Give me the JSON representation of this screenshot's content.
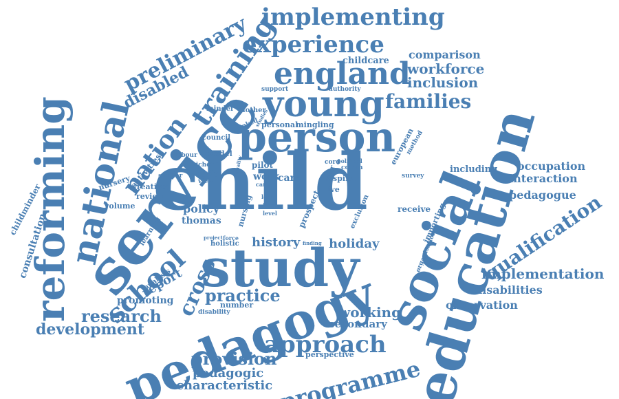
{
  "color": "#4a7fb3",
  "words": [
    {
      "key": "child",
      "text": "child"
    },
    {
      "key": "service",
      "text": "service"
    },
    {
      "key": "study",
      "text": "study"
    },
    {
      "key": "pedagogy",
      "text": "pedagogy"
    },
    {
      "key": "social",
      "text": "social"
    },
    {
      "key": "education",
      "text": "education"
    },
    {
      "key": "person",
      "text": "person"
    },
    {
      "key": "young",
      "text": "young"
    },
    {
      "key": "england",
      "text": "england"
    },
    {
      "key": "reforming",
      "text": "reforming"
    },
    {
      "key": "national",
      "text": "national"
    },
    {
      "key": "training",
      "text": "training"
    },
    {
      "key": "implementing",
      "text": "implementing"
    },
    {
      "key": "experience",
      "text": "experience"
    },
    {
      "key": "approach",
      "text": "approach"
    },
    {
      "key": "school",
      "text": "school"
    },
    {
      "key": "nation",
      "text": "nation"
    },
    {
      "key": "research",
      "text": "research"
    },
    {
      "key": "development",
      "text": "development"
    },
    {
      "key": "programme",
      "text": "programme"
    },
    {
      "key": "qualification",
      "text": "qualification"
    },
    {
      "key": "families",
      "text": "families"
    },
    {
      "key": "preliminary",
      "text": "preliminary"
    },
    {
      "key": "practice",
      "text": "practice"
    },
    {
      "key": "cross",
      "text": "cross"
    },
    {
      "key": "provision",
      "text": "provision"
    },
    {
      "key": "implementation",
      "text": "implementation"
    },
    {
      "key": "workforce",
      "text": "workforce"
    },
    {
      "key": "inclusion",
      "text": "inclusion"
    },
    {
      "key": "comparison",
      "text": "comparison"
    },
    {
      "key": "disabled",
      "text": "disabled"
    },
    {
      "key": "working",
      "text": "working"
    },
    {
      "key": "history",
      "text": "history"
    },
    {
      "key": "holiday",
      "text": "holiday"
    },
    {
      "key": "pedagogic",
      "text": "pedagogic"
    },
    {
      "key": "characteristic",
      "text": "characteristic"
    },
    {
      "key": "secondary",
      "text": "secondary"
    },
    {
      "key": "observation",
      "text": "observation"
    },
    {
      "key": "disabilities",
      "text": "disabilities"
    },
    {
      "key": "occupation",
      "text": "occupation"
    },
    {
      "key": "interaction",
      "text": "interaction"
    },
    {
      "key": "pedagogue",
      "text": "pedagogue"
    },
    {
      "key": "report",
      "text": "report"
    },
    {
      "key": "promoting",
      "text": "promoting"
    },
    {
      "key": "policy",
      "text": "policy"
    },
    {
      "key": "thomas",
      "text": "thomas"
    },
    {
      "key": "consultation",
      "text": "consultation"
    },
    {
      "key": "childminder",
      "text": "childminder"
    },
    {
      "key": "activities",
      "text": "activities"
    },
    {
      "key": "creative",
      "text": "creative"
    },
    {
      "key": "review",
      "text": "review"
    },
    {
      "key": "nursery",
      "text": "nursery"
    },
    {
      "key": "volume",
      "text": "volume"
    },
    {
      "key": "learning",
      "text": "learning"
    },
    {
      "key": "analysis",
      "text": "analysis"
    },
    {
      "key": "number",
      "text": "number"
    },
    {
      "key": "disability",
      "text": "disability"
    },
    {
      "key": "perspective",
      "text": "perspective"
    },
    {
      "key": "receive",
      "text": "receive"
    },
    {
      "key": "including",
      "text": "including"
    },
    {
      "key": "importing",
      "text": "importing"
    },
    {
      "key": "organisation",
      "text": "organisation"
    },
    {
      "key": "european",
      "text": "european"
    },
    {
      "key": "method",
      "text": "method"
    },
    {
      "key": "survey",
      "text": "survey"
    },
    {
      "key": "exclusion",
      "text": "exclusion"
    },
    {
      "key": "prospect",
      "text": "prospect"
    },
    {
      "key": "spinal",
      "text": "spinal"
    },
    {
      "key": "coram",
      "text": "coram"
    },
    {
      "key": "cord",
      "text": "cord"
    },
    {
      "key": "year",
      "text": "year"
    },
    {
      "key": "live",
      "text": "live"
    },
    {
      "key": "political",
      "text": "political"
    },
    {
      "key": "care",
      "text": "care"
    },
    {
      "key": "work",
      "text": "work"
    },
    {
      "key": "pilot",
      "text": "pilot"
    },
    {
      "key": "nursing",
      "text": "nursing"
    },
    {
      "key": "model",
      "text": "model"
    },
    {
      "key": "council",
      "text": "council"
    },
    {
      "key": "labour",
      "text": "labour"
    },
    {
      "key": "richer",
      "text": "richer"
    },
    {
      "key": "injury",
      "text": "injury"
    },
    {
      "key": "view",
      "text": "view"
    },
    {
      "key": "similar",
      "text": "similar"
    },
    {
      "key": "minder",
      "text": "minder"
    },
    {
      "key": "mother",
      "text": "mother"
    },
    {
      "key": "looked",
      "text": "looked"
    },
    {
      "key": "personal",
      "text": "personal"
    },
    {
      "key": "mingling",
      "text": "mingling"
    },
    {
      "key": "studies",
      "text": "studies"
    },
    {
      "key": "childcare",
      "text": "childcare"
    },
    {
      "key": "support",
      "text": "support"
    },
    {
      "key": "authority",
      "text": "authority"
    },
    {
      "key": "holistic",
      "text": "holistic"
    },
    {
      "key": "project",
      "text": "project"
    },
    {
      "key": "force",
      "text": "force"
    },
    {
      "key": "finding",
      "text": "finding"
    },
    {
      "key": "local",
      "text": "local"
    },
    {
      "key": "final",
      "text": "final"
    },
    {
      "key": "level",
      "text": "level"
    },
    {
      "key": "carer",
      "text": "carer"
    },
    {
      "key": "quality",
      "text": "quality"
    }
  ]
}
